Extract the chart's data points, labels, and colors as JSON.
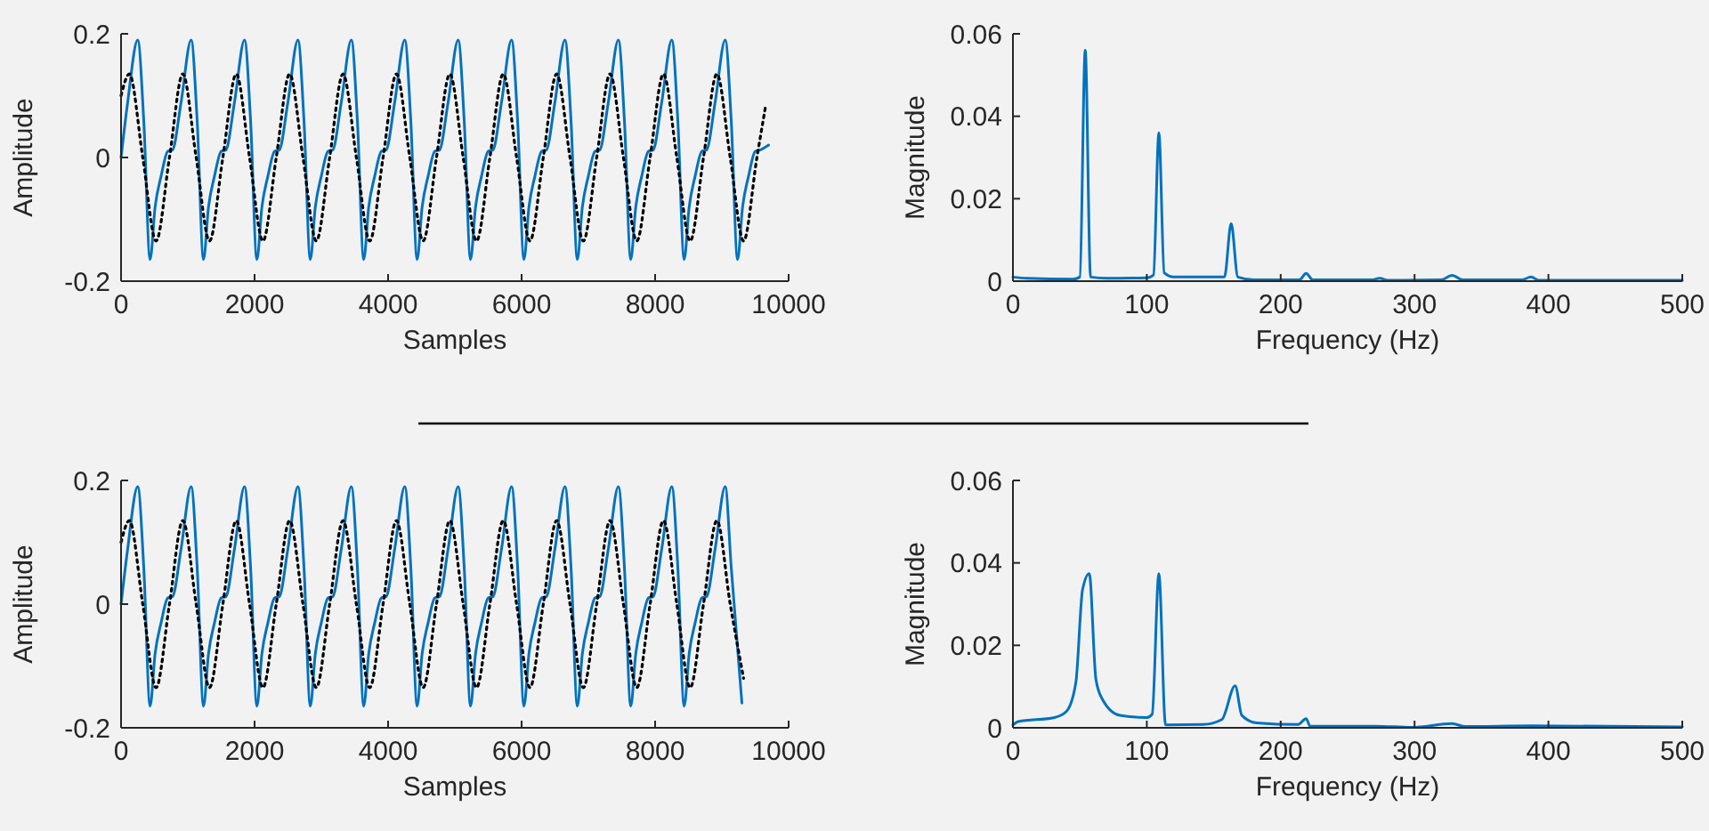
{
  "chart_data": [
    {
      "type": "line",
      "xlabel": "Samples",
      "ylabel": "Amplitude",
      "xlim": [
        0,
        10000
      ],
      "xticks": [
        0,
        2000,
        4000,
        6000,
        8000,
        10000
      ],
      "ylim": [
        -0.2,
        0.2
      ],
      "yticks": [
        -0.2,
        0,
        0.2
      ],
      "series": [
        {
          "color": "#0072bd",
          "line_style": "solid",
          "x": [
            0,
            100,
            250,
            340,
            435,
            510,
            600,
            700,
            770,
            900,
            1050,
            1140,
            1235,
            1310,
            1400,
            1500,
            1570,
            1700,
            1850,
            1940,
            2035,
            2110,
            2200,
            2300,
            2370,
            2500,
            2650,
            2740,
            2835,
            2910,
            3000,
            3100,
            3170,
            3300,
            3450,
            3540,
            3635,
            3710,
            3800,
            3900,
            3970,
            4100,
            4250,
            4340,
            4435,
            4510,
            4600,
            4700,
            4770,
            4900,
            5050,
            5140,
            5235,
            5310,
            5400,
            5500,
            5570,
            5700,
            5850,
            5940,
            6035,
            6110,
            6200,
            6300,
            6370,
            6500,
            6650,
            6740,
            6835,
            6910,
            7000,
            7100,
            7170,
            7300,
            7450,
            7540,
            7635,
            7710,
            7800,
            7900,
            7970,
            8100,
            8250,
            8340,
            8435,
            8510,
            8600,
            8700,
            8770,
            8900,
            9050,
            9140,
            9235,
            9310,
            9400,
            9500,
            9570,
            9700
          ],
          "values": [
            0,
            0.09,
            0.19,
            0.06,
            -0.165,
            -0.08,
            -0.03,
            0.01,
            0.012,
            0.09,
            0.19,
            0.06,
            -0.165,
            -0.08,
            -0.03,
            0.01,
            0.012,
            0.09,
            0.19,
            0.06,
            -0.165,
            -0.08,
            -0.03,
            0.01,
            0.012,
            0.09,
            0.19,
            0.06,
            -0.165,
            -0.08,
            -0.03,
            0.01,
            0.012,
            0.09,
            0.19,
            0.06,
            -0.165,
            -0.08,
            -0.03,
            0.01,
            0.012,
            0.09,
            0.19,
            0.06,
            -0.165,
            -0.08,
            -0.03,
            0.01,
            0.012,
            0.09,
            0.19,
            0.06,
            -0.165,
            -0.08,
            -0.03,
            0.01,
            0.012,
            0.09,
            0.19,
            0.06,
            -0.165,
            -0.08,
            -0.03,
            0.01,
            0.012,
            0.09,
            0.19,
            0.06,
            -0.165,
            -0.08,
            -0.03,
            0.01,
            0.012,
            0.09,
            0.19,
            0.06,
            -0.165,
            -0.08,
            -0.03,
            0.01,
            0.012,
            0.09,
            0.19,
            0.06,
            -0.165,
            -0.08,
            -0.03,
            0.01,
            0.012,
            0.09,
            0.19,
            0.06,
            -0.165,
            -0.08,
            -0.03,
            0.01,
            0.012,
            0.02
          ]
        },
        {
          "color": "#000000",
          "line_style": "dotted",
          "x": [
            0,
            125,
            325,
            525,
            725,
            925,
            1125,
            1325,
            1525,
            1725,
            1925,
            2125,
            2325,
            2525,
            2725,
            2925,
            3125,
            3325,
            3525,
            3725,
            3925,
            4125,
            4325,
            4525,
            4725,
            4925,
            5125,
            5325,
            5525,
            5725,
            5925,
            6125,
            6325,
            6525,
            6725,
            6925,
            7125,
            7325,
            7525,
            7725,
            7925,
            8125,
            8325,
            8525,
            8725,
            8925,
            9125,
            9325,
            9525,
            9650
          ],
          "values": [
            0.1,
            0.135,
            0,
            -0.135,
            0,
            0.135,
            0,
            -0.135,
            0,
            0.135,
            0,
            -0.135,
            0,
            0.135,
            0,
            -0.135,
            0,
            0.135,
            0,
            -0.135,
            0,
            0.135,
            0,
            -0.135,
            0,
            0.135,
            0,
            -0.135,
            0,
            0.135,
            0,
            -0.135,
            0,
            0.135,
            0,
            -0.135,
            0,
            0.135,
            0,
            -0.135,
            0,
            0.135,
            0,
            -0.135,
            0,
            0.135,
            0,
            -0.135,
            0,
            0.08
          ]
        }
      ]
    },
    {
      "type": "line",
      "xlabel": "Frequency (Hz)",
      "ylabel": "Magnitude",
      "xlim": [
        0,
        500
      ],
      "xticks": [
        0,
        100,
        200,
        300,
        400,
        500
      ],
      "ylim": [
        0,
        0.06
      ],
      "yticks": [
        0,
        0.02,
        0.04,
        0.06
      ],
      "series": [
        {
          "color": "#0072bd",
          "line_style": "solid",
          "x": [
            0,
            10,
            45,
            50,
            54,
            58,
            70,
            100,
            105,
            109,
            113,
            120,
            158,
            163,
            168,
            180,
            214,
            219,
            224,
            268,
            274,
            280,
            320,
            328,
            336,
            380,
            387,
            393,
            500
          ],
          "values": [
            0.001,
            0.0007,
            0.0005,
            0.001,
            0.056,
            0.001,
            0.0007,
            0.0008,
            0.0015,
            0.036,
            0.002,
            0.001,
            0.001,
            0.014,
            0.001,
            0.0003,
            0.0003,
            0.0019,
            0.0003,
            0.0003,
            0.0007,
            0.0002,
            0.0003,
            0.0014,
            0.0003,
            0.0003,
            0.001,
            0.0002,
            0.0002
          ]
        }
      ]
    },
    {
      "type": "line",
      "xlabel": "Samples",
      "ylabel": "Amplitude",
      "xlim": [
        0,
        10000
      ],
      "xticks": [
        0,
        2000,
        4000,
        6000,
        8000,
        10000
      ],
      "ylim": [
        -0.2,
        0.2
      ],
      "yticks": [
        -0.2,
        0,
        0.2
      ],
      "series": [
        {
          "color": "#0072bd",
          "line_style": "solid",
          "x": [
            0,
            100,
            250,
            340,
            435,
            510,
            600,
            700,
            770,
            900,
            1050,
            1140,
            1235,
            1310,
            1400,
            1500,
            1570,
            1700,
            1850,
            1940,
            2035,
            2110,
            2200,
            2300,
            2370,
            2500,
            2650,
            2740,
            2835,
            2910,
            3000,
            3100,
            3170,
            3300,
            3450,
            3540,
            3635,
            3710,
            3800,
            3900,
            3970,
            4100,
            4250,
            4340,
            4435,
            4510,
            4600,
            4700,
            4770,
            4900,
            5050,
            5140,
            5235,
            5310,
            5400,
            5500,
            5570,
            5700,
            5850,
            5940,
            6035,
            6110,
            6200,
            6300,
            6370,
            6500,
            6650,
            6740,
            6835,
            6910,
            7000,
            7100,
            7170,
            7300,
            7450,
            7540,
            7635,
            7710,
            7800,
            7900,
            7970,
            8100,
            8250,
            8340,
            8435,
            8510,
            8600,
            8700,
            8770,
            8900,
            9050,
            9140,
            9300
          ],
          "values": [
            0,
            0.09,
            0.19,
            0.06,
            -0.165,
            -0.08,
            -0.03,
            0.01,
            0.012,
            0.09,
            0.19,
            0.06,
            -0.165,
            -0.08,
            -0.03,
            0.01,
            0.012,
            0.09,
            0.19,
            0.06,
            -0.165,
            -0.08,
            -0.03,
            0.01,
            0.012,
            0.09,
            0.19,
            0.06,
            -0.165,
            -0.08,
            -0.03,
            0.01,
            0.012,
            0.09,
            0.19,
            0.06,
            -0.165,
            -0.08,
            -0.03,
            0.01,
            0.012,
            0.09,
            0.19,
            0.06,
            -0.165,
            -0.08,
            -0.03,
            0.01,
            0.012,
            0.09,
            0.19,
            0.06,
            -0.165,
            -0.08,
            -0.03,
            0.01,
            0.012,
            0.09,
            0.19,
            0.06,
            -0.165,
            -0.08,
            -0.03,
            0.01,
            0.012,
            0.09,
            0.19,
            0.06,
            -0.165,
            -0.08,
            -0.03,
            0.01,
            0.012,
            0.09,
            0.19,
            0.06,
            -0.165,
            -0.08,
            -0.03,
            0.01,
            0.012,
            0.09,
            0.19,
            0.06,
            -0.165,
            -0.08,
            -0.03,
            0.01,
            0.012,
            0.09,
            0.19,
            0.06,
            -0.16
          ]
        },
        {
          "color": "#000000",
          "line_style": "dotted",
          "x": [
            0,
            125,
            325,
            525,
            725,
            925,
            1125,
            1325,
            1525,
            1725,
            1925,
            2125,
            2325,
            2525,
            2725,
            2925,
            3125,
            3325,
            3525,
            3725,
            3925,
            4125,
            4325,
            4525,
            4725,
            4925,
            5125,
            5325,
            5525,
            5725,
            5925,
            6125,
            6325,
            6525,
            6725,
            6925,
            7125,
            7325,
            7525,
            7725,
            7925,
            8125,
            8325,
            8525,
            8725,
            8925,
            9125,
            9325
          ],
          "values": [
            0.1,
            0.135,
            0,
            -0.135,
            0,
            0.135,
            0,
            -0.135,
            0,
            0.135,
            0,
            -0.135,
            0,
            0.135,
            0,
            -0.135,
            0,
            0.135,
            0,
            -0.135,
            0,
            0.135,
            0,
            -0.135,
            0,
            0.135,
            0,
            -0.135,
            0,
            0.135,
            0,
            -0.135,
            0,
            0.135,
            0,
            -0.135,
            0,
            0.135,
            0,
            -0.135,
            0,
            0.135,
            0,
            -0.135,
            0,
            0.135,
            0,
            -0.12
          ]
        }
      ]
    },
    {
      "type": "line",
      "xlabel": "Frequency (Hz)",
      "ylabel": "Magnitude",
      "xlim": [
        0,
        500
      ],
      "xticks": [
        0,
        100,
        200,
        300,
        400,
        500
      ],
      "ylim": [
        0,
        0.06
      ],
      "yticks": [
        0,
        0.02,
        0.04,
        0.06
      ],
      "series": [
        {
          "color": "#0072bd",
          "line_style": "solid",
          "x": [
            0,
            4,
            31,
            40,
            47,
            52,
            57,
            62,
            67,
            80,
            100,
            104,
            109,
            114,
            142,
            156,
            166,
            171,
            182,
            213,
            219,
            222,
            271,
            298,
            328,
            338,
            387,
            500
          ],
          "values": [
            0.0007,
            0.0015,
            0.0025,
            0.004,
            0.011,
            0.0335,
            0.0374,
            0.0117,
            0.0068,
            0.003,
            0.0025,
            0.0033,
            0.0374,
            0.0007,
            0.0008,
            0.002,
            0.0102,
            0.003,
            0.0012,
            0.0008,
            0.0022,
            0.0004,
            0.0004,
            0.0001,
            0.001,
            0.0003,
            0.0005,
            0.0002
          ]
        }
      ]
    }
  ]
}
